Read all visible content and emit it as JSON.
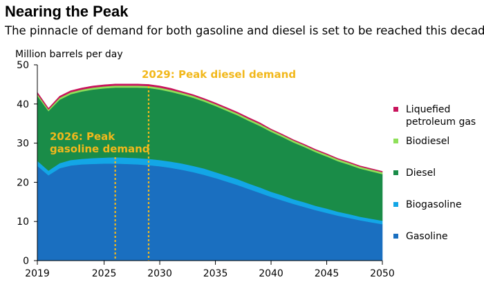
{
  "title": "Nearing the Peak",
  "subtitle": "The pinnacle of demand for both gasoline and diesel is set to be reached this decade",
  "chart_data": {
    "type": "area",
    "stacked": true,
    "ylabel": "Million barrels per day",
    "ylim": [
      0,
      50
    ],
    "xlim": [
      2019,
      2050
    ],
    "yticks": [
      0,
      10,
      20,
      30,
      40,
      50
    ],
    "xticks": [
      2019,
      2025,
      2030,
      2035,
      2040,
      2045,
      2050
    ],
    "grid": false,
    "legend_placement": "right",
    "x": [
      2019,
      2020,
      2021,
      2022,
      2023,
      2024,
      2025,
      2026,
      2027,
      2028,
      2029,
      2030,
      2031,
      2032,
      2033,
      2034,
      2035,
      2036,
      2037,
      2038,
      2039,
      2040,
      2041,
      2042,
      2043,
      2044,
      2045,
      2046,
      2047,
      2048,
      2049,
      2050
    ],
    "series": [
      {
        "name": "Gasoline",
        "color": "#1a6fc0",
        "values": [
          24.2,
          21.8,
          23.6,
          24.3,
          24.6,
          24.7,
          24.8,
          24.8,
          24.7,
          24.6,
          24.4,
          24.1,
          23.7,
          23.2,
          22.6,
          21.9,
          21.1,
          20.2,
          19.3,
          18.3,
          17.3,
          16.3,
          15.4,
          14.5,
          13.7,
          12.9,
          12.2,
          11.5,
          10.9,
          10.3,
          9.8,
          9.3
        ]
      },
      {
        "name": "Biogasoline",
        "color": "#13a6e6",
        "values": [
          1.3,
          1.2,
          1.3,
          1.4,
          1.4,
          1.5,
          1.5,
          1.6,
          1.6,
          1.6,
          1.6,
          1.6,
          1.6,
          1.6,
          1.6,
          1.6,
          1.5,
          1.5,
          1.5,
          1.4,
          1.4,
          1.3,
          1.3,
          1.2,
          1.2,
          1.1,
          1.1,
          1.0,
          1.0,
          0.9,
          0.9,
          0.9
        ]
      },
      {
        "name": "Diesel",
        "color": "#1a8c48",
        "values": [
          16.6,
          15.2,
          16.2,
          16.8,
          17.2,
          17.5,
          17.7,
          17.8,
          17.9,
          18.0,
          18.1,
          18.0,
          17.8,
          17.6,
          17.4,
          17.1,
          16.9,
          16.6,
          16.3,
          16.0,
          15.7,
          15.3,
          14.9,
          14.5,
          14.1,
          13.7,
          13.3,
          12.9,
          12.6,
          12.3,
          12.1,
          11.9
        ]
      },
      {
        "name": "Biodiesel",
        "color": "#8fe05a",
        "values": [
          0.5,
          0.4,
          0.5,
          0.5,
          0.5,
          0.5,
          0.5,
          0.5,
          0.5,
          0.5,
          0.5,
          0.5,
          0.5,
          0.5,
          0.5,
          0.5,
          0.5,
          0.5,
          0.5,
          0.5,
          0.5,
          0.5,
          0.5,
          0.5,
          0.5,
          0.5,
          0.5,
          0.5,
          0.5,
          0.5,
          0.5,
          0.5
        ]
      },
      {
        "name": "Liquefied petroleum gas",
        "color": "#c8145c",
        "values": [
          0.4,
          0.3,
          0.4,
          0.4,
          0.4,
          0.4,
          0.4,
          0.4,
          0.4,
          0.4,
          0.4,
          0.4,
          0.4,
          0.3,
          0.3,
          0.3,
          0.3,
          0.3,
          0.3,
          0.3,
          0.3,
          0.2,
          0.2,
          0.2,
          0.2,
          0.2,
          0.2,
          0.2,
          0.2,
          0.2,
          0.2,
          0.2
        ]
      }
    ],
    "legend": [
      {
        "label_lines": [
          "Liquefied",
          "petroleum gas"
        ],
        "color": "#c8145c"
      },
      {
        "label_lines": [
          "Biodiesel"
        ],
        "color": "#8fe05a"
      },
      {
        "label_lines": [
          "Diesel"
        ],
        "color": "#1a8c48"
      },
      {
        "label_lines": [
          "Biogasoline"
        ],
        "color": "#13a6e6"
      },
      {
        "label_lines": [
          "Gasoline"
        ],
        "color": "#1a6fc0"
      }
    ],
    "annotations": [
      {
        "x": 2026,
        "lines": [
          "2026: Peak",
          "gasoline demand"
        ],
        "color": "#f2b81b"
      },
      {
        "x": 2029,
        "lines": [
          "2029: Peak diesel demand"
        ],
        "color": "#f2b81b"
      }
    ]
  }
}
